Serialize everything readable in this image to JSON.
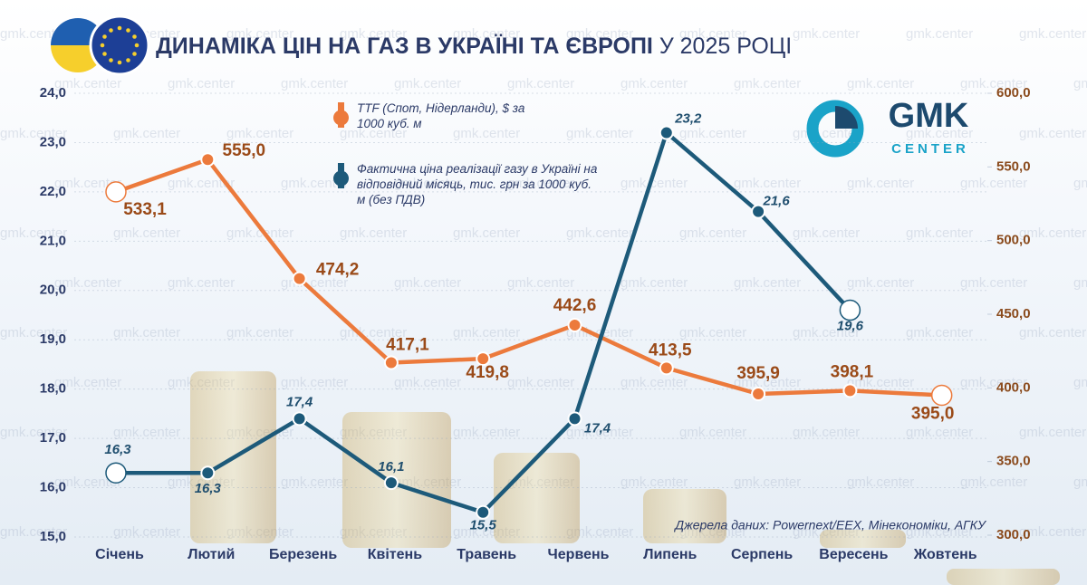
{
  "chart_data": {
    "type": "line",
    "title": "ДИНАМІКА ЦІН НА ГАЗ В УКРАЇНІ ТА ЄВРОПІ",
    "title_suffix": "У 2025 РОЦІ",
    "categories": [
      "Січень",
      "Лютий",
      "Березень",
      "Квітень",
      "Травень",
      "Червень",
      "Липень",
      "Серпень",
      "Вересень",
      "Жовтень"
    ],
    "series": [
      {
        "name": "TTF (Спот, Нідерланди), $ за 1000 куб. м",
        "color": "#ec7a3c",
        "axis": "y2",
        "values": [
          533.1,
          555.0,
          474.2,
          417.1,
          419.8,
          442.6,
          413.5,
          395.9,
          398.1,
          395.0
        ],
        "value_labels": [
          "533,1",
          "555,0",
          "474,2",
          "417,1",
          "419,8",
          "442,6",
          "413,5",
          "395,9",
          "398,1",
          "395,0"
        ]
      },
      {
        "name": "Фактична ціна реалізації газу в Україні на відповідний місяць, тис. грн за 1000 куб. м (без ПДВ)",
        "color": "#1d5a7a",
        "values": [
          16.3,
          16.3,
          17.4,
          16.1,
          15.5,
          17.4,
          23.2,
          21.6,
          19.6,
          null
        ],
        "value_labels": [
          "16,3",
          "16,3",
          "17,4",
          "16,1",
          "15,5",
          "17,4",
          "23,2",
          "21,6",
          "19,6",
          null
        ]
      }
    ],
    "ylim": [
      15,
      24
    ],
    "yticks": [
      {
        "value": 15,
        "label": "15,0"
      },
      {
        "value": 16,
        "label": "16,0"
      },
      {
        "value": 17,
        "label": "17,0"
      },
      {
        "value": 18,
        "label": "18,0"
      },
      {
        "value": 19,
        "label": "19,0"
      },
      {
        "value": 20,
        "label": "20,0"
      },
      {
        "value": 21,
        "label": "21,0"
      },
      {
        "value": 22,
        "label": "22,0"
      },
      {
        "value": 23,
        "label": "23,0"
      },
      {
        "value": 24,
        "label": "24,0"
      }
    ],
    "y2lim": [
      300,
      600
    ],
    "y2ticks": [
      {
        "value": 300,
        "label": "300,0"
      },
      {
        "value": 350,
        "label": "350,0"
      },
      {
        "value": 400,
        "label": "400,0"
      },
      {
        "value": 450,
        "label": "450,0"
      },
      {
        "value": 500,
        "label": "500,0"
      },
      {
        "value": 550,
        "label": "550,0"
      },
      {
        "value": 600,
        "label": "600,0"
      }
    ],
    "grid": true,
    "source": "Джерела даних: Powernext/EEX, Мінекономіки, АГКУ"
  },
  "logo": {
    "name": "GMK",
    "tagline": "CENTER"
  },
  "watermark": "gmk.center"
}
